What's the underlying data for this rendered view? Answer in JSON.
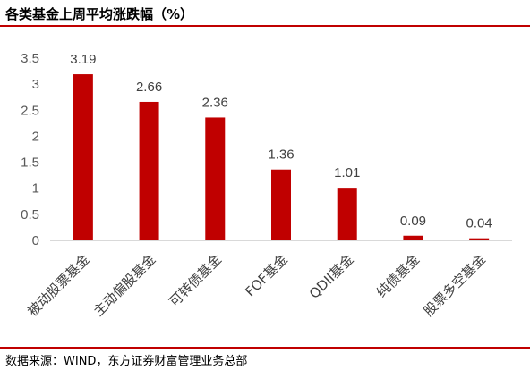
{
  "header": {
    "title": "各类基金上周平均涨跌幅（%）"
  },
  "footer": {
    "source": "数据来源：WIND，东方证券财富管理业务总部"
  },
  "chart_data": {
    "type": "bar",
    "categories": [
      "被动股票基金",
      "主动偏股基金",
      "可转债基金",
      "FOF基金",
      "QDII基金",
      "纯债基金",
      "股票多空基金"
    ],
    "values": [
      3.19,
      2.66,
      2.36,
      1.36,
      1.01,
      0.09,
      0.04
    ],
    "data_labels": [
      "3.19",
      "2.66",
      "2.36",
      "1.36",
      "1.01",
      "0.09",
      "0.04"
    ],
    "yticks": [
      "0",
      "0.5",
      "1",
      "1.5",
      "2",
      "2.5",
      "3",
      "3.5"
    ],
    "ylim": [
      0,
      3.5
    ],
    "title": "",
    "xlabel": "",
    "ylabel": "",
    "grid": false,
    "bar_color": "#c00000",
    "axis_color": "#d9d9d9"
  }
}
